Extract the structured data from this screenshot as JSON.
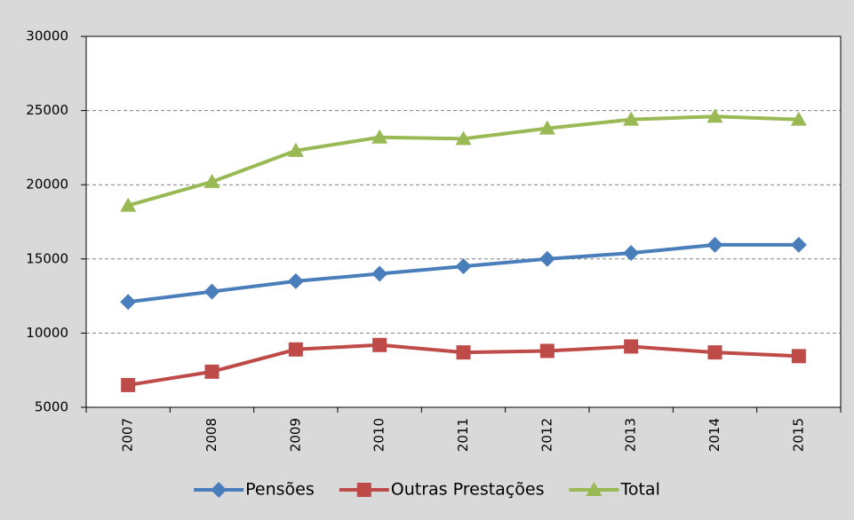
{
  "chart_data": {
    "type": "line",
    "categories": [
      "2007",
      "2008",
      "2009",
      "2010",
      "2011",
      "2012",
      "2013",
      "2014",
      "2015"
    ],
    "series": [
      {
        "name": "Pensões",
        "color": "#4a7ebb",
        "marker": "diamond",
        "values": [
          12100,
          12800,
          13500,
          14000,
          14500,
          15000,
          15400,
          15950,
          15950
        ]
      },
      {
        "name": "Outras Prestações",
        "color": "#be4b48",
        "marker": "square",
        "values": [
          6500,
          7400,
          8900,
          9200,
          8700,
          8800,
          9100,
          8700,
          8450
        ]
      },
      {
        "name": "Total",
        "color": "#98b954",
        "marker": "triangle",
        "values": [
          18600,
          20200,
          22300,
          23200,
          23100,
          23800,
          24400,
          24600,
          24400
        ]
      }
    ],
    "ylim": [
      5000,
      30000
    ],
    "yticks": [
      5000,
      10000,
      15000,
      20000,
      25000,
      30000
    ],
    "grid": true,
    "legend": "bottom"
  }
}
